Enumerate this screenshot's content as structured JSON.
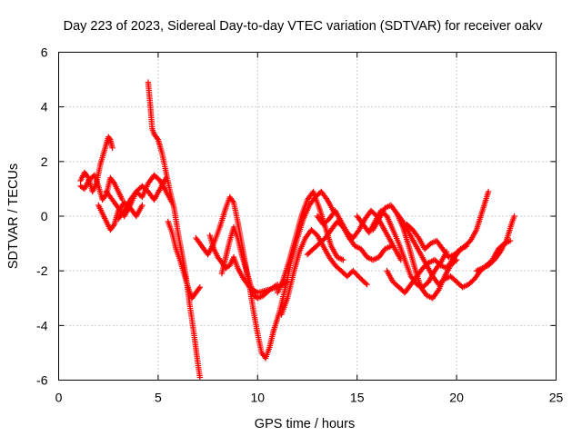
{
  "chart_data": {
    "type": "scatter",
    "title": "Day 223 of 2023, Sidereal Day-to-day VTEC variation (SDTVAR) for receiver oakv",
    "xlabel": "GPS time / hours",
    "ylabel": "SDTVAR / TECUs",
    "xlim": [
      0,
      25
    ],
    "ylim": [
      -6,
      6
    ],
    "xticks": [
      "0",
      "5",
      "10",
      "15",
      "20",
      "25"
    ],
    "yticks": [
      "-6",
      "-4",
      "-2",
      "0",
      "2",
      "4",
      "6"
    ],
    "grid": true,
    "marker": "plus",
    "color": "#ff0000",
    "series": [
      {
        "x": [
          1.1,
          1.3,
          1.5,
          1.7,
          1.9,
          2.1,
          2.3,
          2.5,
          2.6,
          2.7
        ],
        "y": [
          1.3,
          1.6,
          1.4,
          0.9,
          1.2,
          1.9,
          2.4,
          2.9,
          2.8,
          2.5
        ]
      },
      {
        "x": [
          1.1,
          1.3,
          1.5,
          1.8,
          2.0,
          2.2,
          2.4,
          2.6,
          2.8,
          3.0,
          3.2
        ],
        "y": [
          1.1,
          1.0,
          1.3,
          1.5,
          1.1,
          0.6,
          0.8,
          1.4,
          1.2,
          0.9,
          0.6
        ]
      },
      {
        "x": [
          2.0,
          2.2,
          2.4,
          2.6,
          2.8,
          3.0,
          3.3,
          3.6,
          3.9,
          4.2
        ],
        "y": [
          0.4,
          0.1,
          -0.2,
          -0.5,
          -0.3,
          0.2,
          0.5,
          0.3,
          0.0,
          0.4
        ]
      },
      {
        "x": [
          2.4,
          2.7,
          3.0,
          3.3,
          3.6,
          3.9,
          4.2,
          4.5,
          4.8,
          5.1,
          5.4
        ],
        "y": [
          0.9,
          0.6,
          0.3,
          0.0,
          0.4,
          0.9,
          1.1,
          0.9,
          0.6,
          1.0,
          1.4
        ]
      },
      {
        "x": [
          3.0,
          3.3,
          3.6,
          3.9,
          4.2,
          4.5,
          4.8,
          5.1,
          5.4,
          5.7
        ],
        "y": [
          -0.1,
          0.2,
          0.6,
          0.9,
          0.7,
          1.2,
          1.5,
          1.3,
          0.9,
          0.5
        ]
      },
      {
        "x": [
          4.5,
          4.6,
          4.7,
          4.8,
          5.0,
          5.2,
          5.4,
          5.6,
          5.8,
          6.0,
          6.2,
          6.4,
          6.6,
          6.8,
          7.0,
          7.1
        ],
        "y": [
          4.9,
          4.1,
          3.2,
          3.0,
          2.8,
          2.3,
          1.6,
          0.9,
          0.3,
          -0.6,
          -1.4,
          -2.2,
          -3.3,
          -4.3,
          -5.4,
          -5.9
        ]
      },
      {
        "x": [
          5.5,
          5.7,
          5.9,
          6.1,
          6.3,
          6.5,
          6.7,
          6.9,
          7.1
        ],
        "y": [
          -0.2,
          -0.6,
          -1.2,
          -1.6,
          -2.1,
          -2.6,
          -3.0,
          -2.8,
          -2.6
        ]
      },
      {
        "x": [
          6.9,
          7.1,
          7.3,
          7.5,
          7.8,
          8.1,
          8.4,
          8.6,
          8.8,
          9.0,
          9.2,
          9.4,
          9.6,
          9.8,
          10.0,
          10.2,
          10.4,
          10.6,
          10.8
        ],
        "y": [
          -0.8,
          -1.0,
          -1.2,
          -1.4,
          -1.0,
          -0.4,
          0.3,
          0.7,
          0.5,
          -0.2,
          -1.0,
          -1.8,
          -2.6,
          -3.5,
          -4.3,
          -5.0,
          -5.2,
          -4.8,
          -4.2
        ]
      },
      {
        "x": [
          7.6,
          7.8,
          8.0,
          8.2,
          8.4,
          8.6,
          8.8,
          9.0,
          9.3,
          9.6,
          10.0,
          10.5,
          11.0,
          11.5
        ],
        "y": [
          -0.7,
          -1.2,
          -1.5,
          -1.7,
          -1.9,
          -1.8,
          -1.5,
          -1.9,
          -2.3,
          -2.6,
          -2.8,
          -2.7,
          -2.6,
          -2.4
        ]
      },
      {
        "x": [
          8.2,
          8.4,
          8.6,
          8.8,
          9.0,
          9.2,
          9.4,
          9.6,
          9.8,
          10.0,
          10.3,
          10.6,
          11.0
        ],
        "y": [
          -2.1,
          -1.5,
          -0.9,
          -0.4,
          -0.8,
          -1.4,
          -1.9,
          -2.4,
          -2.9,
          -3.0,
          -2.9,
          -2.7,
          -2.5
        ]
      },
      {
        "x": [
          10.8,
          11.1,
          11.4,
          11.7,
          12.0,
          12.3,
          12.6,
          12.9,
          13.2,
          13.5,
          13.8
        ],
        "y": [
          -4.2,
          -3.5,
          -2.6,
          -1.6,
          -0.8,
          -0.1,
          0.4,
          0.7,
          0.9,
          0.6,
          0.2
        ]
      },
      {
        "x": [
          11.0,
          11.3,
          11.6,
          11.9,
          12.2,
          12.5,
          12.8,
          13.1,
          13.4,
          13.7,
          14.0,
          14.3
        ],
        "y": [
          -2.8,
          -2.3,
          -1.6,
          -0.8,
          0.0,
          0.6,
          0.9,
          0.3,
          -0.4,
          -1.1,
          -1.5,
          -1.6
        ]
      },
      {
        "x": [
          11.2,
          11.5,
          11.8,
          12.1,
          12.4,
          12.7,
          13.0,
          13.3,
          13.6,
          13.9,
          14.2,
          14.5,
          14.8,
          15.2,
          15.5
        ],
        "y": [
          -3.6,
          -3.0,
          -2.1,
          -1.3,
          -0.8,
          -0.5,
          -0.7,
          -1.1,
          -1.5,
          -1.8,
          -2.0,
          -2.2,
          -2.0,
          -2.3,
          -2.5
        ]
      },
      {
        "x": [
          12.5,
          12.8,
          13.1,
          13.4,
          13.7,
          14.0,
          14.3,
          14.6,
          14.9,
          15.2,
          15.5,
          15.8,
          16.1,
          16.4,
          16.7
        ],
        "y": [
          -1.4,
          -1.2,
          -1.0,
          -0.8,
          -0.5,
          -0.2,
          -0.4,
          -0.8,
          -1.1,
          -1.2,
          -1.5,
          -1.6,
          -1.5,
          -1.2,
          -1.1
        ]
      },
      {
        "x": [
          13.0,
          13.3,
          13.6,
          13.9,
          14.2,
          14.5,
          14.8,
          15.1,
          15.4,
          15.7,
          16.0,
          16.3,
          16.6,
          16.9,
          17.2
        ],
        "y": [
          0.0,
          -0.3,
          -0.1,
          0.2,
          -0.2,
          -0.6,
          -0.8,
          -0.5,
          -0.1,
          0.2,
          0.0,
          -0.4,
          -0.8,
          -1.2,
          -1.6
        ]
      },
      {
        "x": [
          15.0,
          15.3,
          15.6,
          15.9,
          16.2,
          16.5,
          16.8,
          17.1,
          17.4,
          17.7,
          18.0,
          18.3,
          18.6,
          18.9,
          19.2,
          19.5
        ],
        "y": [
          0.0,
          -0.3,
          -0.6,
          -0.2,
          0.2,
          0.0,
          -0.5,
          -1.0,
          -1.6,
          -2.2,
          -2.5,
          -2.6,
          -2.4,
          -2.0,
          -1.7,
          -1.3
        ]
      },
      {
        "x": [
          15.8,
          16.1,
          16.4,
          16.7,
          17.0,
          17.3,
          17.6,
          17.9,
          18.2,
          18.5,
          18.8,
          19.1,
          19.4,
          19.7,
          20.0
        ],
        "y": [
          -0.5,
          -0.1,
          0.3,
          0.4,
          0.1,
          -0.4,
          -1.1,
          -1.9,
          -2.6,
          -2.9,
          -3.0,
          -2.7,
          -2.2,
          -1.8,
          -1.6
        ]
      },
      {
        "x": [
          16.5,
          16.8,
          17.1,
          17.4,
          17.7,
          18.0,
          18.3,
          18.6,
          18.9,
          19.2,
          19.5,
          19.8,
          20.1,
          20.4,
          20.7,
          21.0,
          21.3,
          21.6
        ],
        "y": [
          -2.0,
          -2.4,
          -2.6,
          -2.8,
          -2.5,
          -2.2,
          -1.9,
          -1.7,
          -1.6,
          -1.8,
          -1.9,
          -1.6,
          -1.3,
          -1.1,
          -0.9,
          -0.5,
          0.2,
          0.9
        ]
      },
      {
        "x": [
          17.0,
          17.3,
          17.6,
          17.9,
          18.2,
          18.5,
          18.8,
          19.1,
          19.4,
          19.7,
          20.0,
          20.3,
          20.6,
          20.9,
          21.2,
          21.5,
          21.8,
          22.1,
          22.4,
          22.7
        ],
        "y": [
          0.1,
          -0.2,
          -0.6,
          -1.0,
          -1.4,
          -1.8,
          -2.2,
          -2.5,
          -2.3,
          -2.2,
          -2.4,
          -2.6,
          -2.5,
          -2.3,
          -2.0,
          -1.8,
          -1.6,
          -1.2,
          -1.0,
          -0.9
        ]
      },
      {
        "x": [
          17.5,
          17.8,
          18.1,
          18.4,
          18.7,
          19.0,
          19.3,
          19.6,
          19.9,
          20.2,
          20.5
        ],
        "y": [
          -0.3,
          -0.5,
          -0.8,
          -1.2,
          -1.0,
          -0.9,
          -1.2,
          -1.5,
          -1.4,
          -1.2,
          -1.1
        ]
      },
      {
        "x": [
          21.0,
          21.3,
          21.6,
          21.9,
          22.2,
          22.5,
          22.8,
          22.9
        ],
        "y": [
          -2.0,
          -1.9,
          -1.8,
          -1.6,
          -1.3,
          -0.9,
          -0.2,
          0.0
        ]
      }
    ]
  }
}
